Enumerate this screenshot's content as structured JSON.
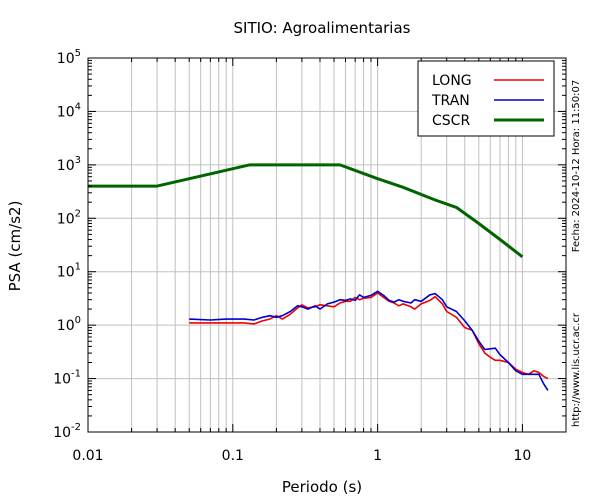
{
  "chart_data": {
    "type": "line",
    "title": "SITIO: Agroalimentarias",
    "xlabel": "Periodo (s)",
    "ylabel": "PSA (cm/s2)",
    "xscale": "log",
    "yscale": "log",
    "xlim": [
      0.01,
      20
    ],
    "ylim": [
      0.01,
      100000
    ],
    "grid": true,
    "legend_position": "top-right",
    "x_ticks": [
      {
        "value": 0.01,
        "label": "0.01"
      },
      {
        "value": 0.1,
        "label": "0.1"
      },
      {
        "value": 1,
        "label": "1"
      },
      {
        "value": 10,
        "label": "10"
      }
    ],
    "y_ticks": [
      {
        "value": 0.01,
        "base": "10",
        "exp": "-2"
      },
      {
        "value": 0.1,
        "base": "10",
        "exp": "-1"
      },
      {
        "value": 1,
        "base": "10",
        "exp": "0"
      },
      {
        "value": 10,
        "base": "10",
        "exp": "1"
      },
      {
        "value": 100,
        "base": "10",
        "exp": "2"
      },
      {
        "value": 1000,
        "base": "10",
        "exp": "3"
      },
      {
        "value": 10000,
        "base": "10",
        "exp": "4"
      },
      {
        "value": 100000,
        "base": "10",
        "exp": "5"
      }
    ],
    "series": [
      {
        "name": "LONG",
        "color": "#ee0000",
        "points": [
          [
            0.05,
            1.1
          ],
          [
            0.07,
            1.1
          ],
          [
            0.09,
            1.1
          ],
          [
            0.12,
            1.1
          ],
          [
            0.14,
            1.05
          ],
          [
            0.16,
            1.2
          ],
          [
            0.18,
            1.3
          ],
          [
            0.2,
            1.5
          ],
          [
            0.22,
            1.3
          ],
          [
            0.25,
            1.6
          ],
          [
            0.28,
            2.1
          ],
          [
            0.3,
            2.4
          ],
          [
            0.33,
            2.1
          ],
          [
            0.37,
            2.2
          ],
          [
            0.4,
            2.4
          ],
          [
            0.45,
            2.3
          ],
          [
            0.5,
            2.2
          ],
          [
            0.55,
            2.6
          ],
          [
            0.6,
            2.8
          ],
          [
            0.65,
            2.8
          ],
          [
            0.7,
            3.3
          ],
          [
            0.75,
            3.0
          ],
          [
            0.8,
            3.2
          ],
          [
            0.9,
            3.3
          ],
          [
            1.0,
            4.0
          ],
          [
            1.1,
            3.3
          ],
          [
            1.2,
            2.8
          ],
          [
            1.3,
            2.6
          ],
          [
            1.4,
            2.3
          ],
          [
            1.5,
            2.5
          ],
          [
            1.7,
            2.2
          ],
          [
            1.8,
            2.0
          ],
          [
            2.0,
            2.5
          ],
          [
            2.3,
            2.9
          ],
          [
            2.5,
            3.4
          ],
          [
            2.8,
            2.5
          ],
          [
            3.0,
            1.8
          ],
          [
            3.5,
            1.4
          ],
          [
            4.0,
            0.9
          ],
          [
            4.5,
            0.8
          ],
          [
            5.0,
            0.45
          ],
          [
            5.5,
            0.3
          ],
          [
            6.0,
            0.25
          ],
          [
            6.5,
            0.22
          ],
          [
            7.0,
            0.22
          ],
          [
            8.0,
            0.2
          ],
          [
            9.0,
            0.15
          ],
          [
            10.0,
            0.13
          ],
          [
            11.0,
            0.12
          ],
          [
            12.0,
            0.14
          ],
          [
            13.0,
            0.13
          ],
          [
            14.0,
            0.11
          ],
          [
            15.0,
            0.1
          ]
        ]
      },
      {
        "name": "TRAN",
        "color": "#0000cc",
        "points": [
          [
            0.05,
            1.3
          ],
          [
            0.07,
            1.25
          ],
          [
            0.09,
            1.3
          ],
          [
            0.12,
            1.3
          ],
          [
            0.14,
            1.25
          ],
          [
            0.16,
            1.4
          ],
          [
            0.18,
            1.5
          ],
          [
            0.2,
            1.4
          ],
          [
            0.22,
            1.5
          ],
          [
            0.25,
            1.8
          ],
          [
            0.28,
            2.3
          ],
          [
            0.3,
            2.2
          ],
          [
            0.33,
            2.0
          ],
          [
            0.37,
            2.3
          ],
          [
            0.4,
            2.0
          ],
          [
            0.45,
            2.5
          ],
          [
            0.5,
            2.7
          ],
          [
            0.55,
            3.0
          ],
          [
            0.6,
            2.9
          ],
          [
            0.65,
            3.1
          ],
          [
            0.7,
            2.9
          ],
          [
            0.75,
            3.7
          ],
          [
            0.8,
            3.3
          ],
          [
            0.9,
            3.6
          ],
          [
            1.0,
            4.3
          ],
          [
            1.1,
            3.6
          ],
          [
            1.2,
            2.9
          ],
          [
            1.3,
            2.7
          ],
          [
            1.4,
            3.0
          ],
          [
            1.5,
            2.8
          ],
          [
            1.7,
            2.6
          ],
          [
            1.8,
            3.0
          ],
          [
            2.0,
            2.8
          ],
          [
            2.3,
            3.7
          ],
          [
            2.5,
            3.9
          ],
          [
            2.8,
            3.0
          ],
          [
            3.0,
            2.2
          ],
          [
            3.5,
            1.8
          ],
          [
            4.0,
            1.2
          ],
          [
            4.5,
            0.8
          ],
          [
            5.0,
            0.5
          ],
          [
            5.5,
            0.35
          ],
          [
            6.0,
            0.36
          ],
          [
            6.5,
            0.37
          ],
          [
            7.0,
            0.28
          ],
          [
            8.0,
            0.2
          ],
          [
            9.0,
            0.14
          ],
          [
            10.0,
            0.12
          ],
          [
            11.0,
            0.12
          ],
          [
            12.0,
            0.12
          ],
          [
            13.0,
            0.12
          ],
          [
            14.0,
            0.08
          ],
          [
            15.0,
            0.06
          ]
        ]
      },
      {
        "name": "CSCR",
        "color": "#006400",
        "points": [
          [
            0.01,
            400
          ],
          [
            0.03,
            400
          ],
          [
            0.13,
            1000
          ],
          [
            0.55,
            1000
          ],
          [
            1.0,
            550
          ],
          [
            1.5,
            380
          ],
          [
            2.5,
            220
          ],
          [
            3.5,
            160
          ],
          [
            5.0,
            80
          ],
          [
            7.0,
            40
          ],
          [
            10.0,
            19
          ]
        ]
      }
    ]
  },
  "side_labels": {
    "right_top": "Fecha: 2024-10-12 Hora: 11:50:07",
    "right_bottom": "http://www.lis.ucr.ac.cr"
  }
}
